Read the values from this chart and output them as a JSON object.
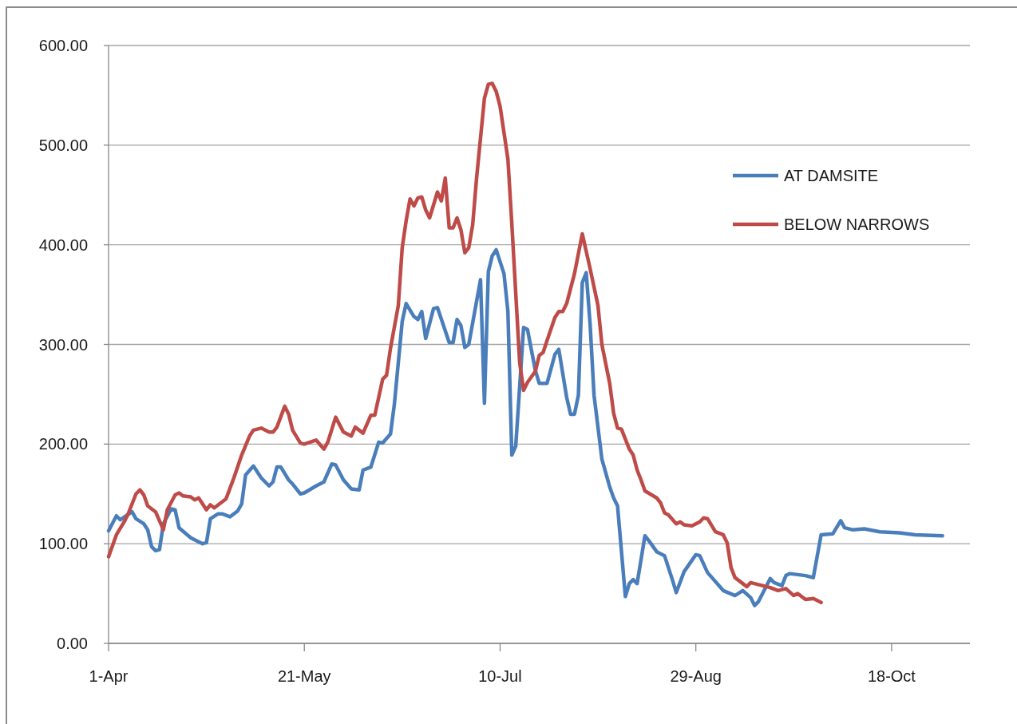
{
  "chart_data": {
    "type": "line",
    "xlim": [
      "--04-01",
      "--11-07"
    ],
    "xticks": [
      {
        "value": "--04-01",
        "label": "1-Apr"
      },
      {
        "value": "--05-21",
        "label": "21-May"
      },
      {
        "value": "--07-10",
        "label": "10-Jul"
      },
      {
        "value": "--08-29",
        "label": "29-Aug"
      },
      {
        "value": "--10-18",
        "label": "18-Oct"
      }
    ],
    "ylim": [
      0,
      600
    ],
    "yticks": [
      {
        "value": 0,
        "label": "0.00"
      },
      {
        "value": 100,
        "label": "100.00"
      },
      {
        "value": 200,
        "label": "200.00"
      },
      {
        "value": 300,
        "label": "300.00"
      },
      {
        "value": 400,
        "label": "400.00"
      },
      {
        "value": 500,
        "label": "500.00"
      },
      {
        "value": 600,
        "label": "600.00"
      }
    ],
    "grid": "y",
    "legend": "top right",
    "series": [
      {
        "name": "AT DAMSITE",
        "color": "#4a7ebb",
        "x": [
          "--04-01",
          "--04-03",
          "--04-04",
          "--04-07",
          "--04-08",
          "--04-10",
          "--04-11",
          "--04-12",
          "--04-13",
          "--04-14",
          "--04-15",
          "--04-17",
          "--04-18",
          "--04-19",
          "--04-22",
          "--04-25",
          "--04-26",
          "--04-27",
          "--04-29",
          "--04-30",
          "--05-02",
          "--05-04",
          "--05-05",
          "--05-06",
          "--05-08",
          "--05-10",
          "--05-12",
          "--05-13",
          "--05-14",
          "--05-15",
          "--05-17",
          "--05-18",
          "--05-20",
          "--05-21",
          "--05-24",
          "--05-26",
          "--05-28",
          "--05-29",
          "--05-31",
          "--06-02",
          "--06-04",
          "--06-05",
          "--06-07",
          "--06-09",
          "--06-10",
          "--06-12",
          "--06-13",
          "--06-15",
          "--06-16",
          "--06-18",
          "--06-19",
          "--06-20",
          "--06-21",
          "--06-23",
          "--06-24",
          "--06-27",
          "--06-28",
          "--06-29",
          "--06-30",
          "--07-01",
          "--07-02",
          "--07-05",
          "--07-06",
          "--07-07",
          "--07-08",
          "--07-09",
          "--07-11",
          "--07-12",
          "--07-13",
          "--07-14",
          "--07-16",
          "--07-17",
          "--07-19",
          "--07-20",
          "--07-22",
          "--07-24",
          "--07-25",
          "--07-27",
          "--07-28",
          "--07-29",
          "--07-30",
          "--07-31",
          "--08-01",
          "--08-02",
          "--08-03",
          "--08-05",
          "--08-07",
          "--08-08",
          "--08-09",
          "--08-11",
          "--08-12",
          "--08-13",
          "--08-14",
          "--08-16",
          "--08-17",
          "--08-19",
          "--08-21",
          "--08-23",
          "--08-24",
          "--08-26",
          "--08-29",
          "--08-30",
          "--09-01",
          "--09-05",
          "--09-08",
          "--09-10",
          "--09-12",
          "--09-13",
          "--09-14",
          "--09-17",
          "--09-18",
          "--09-20",
          "--09-21",
          "--09-22",
          "--09-26",
          "--09-28",
          "--09-30",
          "--10-03",
          "--10-05",
          "--10-06",
          "--10-08",
          "--10-11",
          "--10-15",
          "--10-20",
          "--10-24",
          "--10-31"
        ],
        "values": [
          113,
          128,
          124,
          132,
          125,
          120,
          114,
          97,
          93,
          94,
          120,
          135,
          134,
          116,
          106,
          100,
          101,
          125,
          130,
          130,
          127,
          133,
          140,
          169,
          178,
          166,
          158,
          162,
          177,
          177,
          164,
          160,
          150,
          151,
          158,
          162,
          180,
          179,
          164,
          155,
          154,
          174,
          177,
          202,
          201,
          210,
          240,
          323,
          341,
          328,
          325,
          333,
          306,
          336,
          337,
          302,
          302,
          325,
          319,
          297,
          300,
          365,
          241,
          373,
          389,
          395,
          371,
          333,
          189,
          198,
          317,
          315,
          274,
          261,
          261,
          290,
          295,
          247,
          230,
          230,
          249,
          362,
          372,
          320,
          249,
          185,
          157,
          146,
          138,
          47,
          60,
          64,
          60,
          108,
          103,
          92,
          88,
          64,
          51,
          72,
          89,
          88,
          71,
          53,
          48,
          53,
          46,
          38,
          42,
          65,
          61,
          58,
          68,
          70,
          68,
          66,
          109,
          110,
          123,
          116,
          114,
          115,
          112,
          111,
          109,
          108
        ]
      },
      {
        "name": "BELOW NARROWS",
        "color": "#be4b48",
        "x": [
          "--04-01",
          "--04-03",
          "--04-05",
          "--04-06",
          "--04-08",
          "--04-09",
          "--04-10",
          "--04-11",
          "--04-13",
          "--04-15",
          "--04-16",
          "--04-18",
          "--04-19",
          "--04-20",
          "--04-22",
          "--04-23",
          "--04-24",
          "--04-26",
          "--04-27",
          "--04-28",
          "--05-01",
          "--05-03",
          "--05-05",
          "--05-07",
          "--05-08",
          "--05-10",
          "--05-12",
          "--05-13",
          "--05-14",
          "--05-16",
          "--05-17",
          "--05-18",
          "--05-20",
          "--05-21",
          "--05-24",
          "--05-26",
          "--05-27",
          "--05-29",
          "--05-31",
          "--06-02",
          "--06-03",
          "--06-05",
          "--06-07",
          "--06-08",
          "--06-10",
          "--06-11",
          "--06-12",
          "--06-14",
          "--06-15",
          "--06-16",
          "--06-17",
          "--06-18",
          "--06-19",
          "--06-20",
          "--06-21",
          "--06-22",
          "--06-23",
          "--06-24",
          "--06-25",
          "--06-26",
          "--06-27",
          "--06-28",
          "--06-29",
          "--06-30",
          "--07-01",
          "--07-02",
          "--07-03",
          "--07-04",
          "--07-06",
          "--07-07",
          "--07-08",
          "--07-09",
          "--07-10",
          "--07-12",
          "--07-13",
          "--07-15",
          "--07-16",
          "--07-17",
          "--07-19",
          "--07-20",
          "--07-21",
          "--07-22",
          "--07-24",
          "--07-25",
          "--07-26",
          "--07-27",
          "--07-29",
          "--07-31",
          "--08-02",
          "--08-04",
          "--08-05",
          "--08-07",
          "--08-08",
          "--08-09",
          "--08-10",
          "--08-12",
          "--08-13",
          "--08-14",
          "--08-15",
          "--08-16",
          "--08-19",
          "--08-20",
          "--08-21",
          "--08-22",
          "--08-24",
          "--08-25",
          "--08-26",
          "--08-28",
          "--08-30",
          "--08-31",
          "--09-01",
          "--09-03",
          "--09-05",
          "--09-06",
          "--09-07",
          "--09-08",
          "--09-11",
          "--09-12",
          "--09-15",
          "--09-17",
          "--09-19",
          "--09-21",
          "--09-23",
          "--09-24",
          "--09-26",
          "--09-28",
          "--09-30"
        ],
        "values": [
          87,
          109,
          122,
          130,
          150,
          154,
          149,
          138,
          132,
          114,
          134,
          149,
          151,
          148,
          147,
          144,
          146,
          134,
          139,
          136,
          145,
          166,
          189,
          208,
          214,
          216,
          212,
          212,
          217,
          238,
          230,
          214,
          201,
          200,
          204,
          195,
          202,
          227,
          212,
          208,
          217,
          211,
          229,
          229,
          265,
          269,
          296,
          339,
          397,
          424,
          446,
          439,
          447,
          448,
          435,
          427,
          440,
          453,
          444,
          467,
          417,
          417,
          427,
          415,
          392,
          397,
          420,
          467,
          547,
          561,
          562,
          554,
          539,
          486,
          421,
          282,
          254,
          262,
          273,
          289,
          292,
          304,
          327,
          333,
          333,
          341,
          371,
          411,
          376,
          339,
          300,
          261,
          231,
          216,
          215,
          195,
          189,
          174,
          164,
          153,
          146,
          141,
          131,
          129,
          120,
          122,
          119,
          118,
          122,
          126,
          125,
          112,
          109,
          101,
          76,
          66,
          57,
          61,
          58,
          56,
          53,
          55,
          48,
          50,
          44,
          45,
          41
        ]
      }
    ]
  }
}
